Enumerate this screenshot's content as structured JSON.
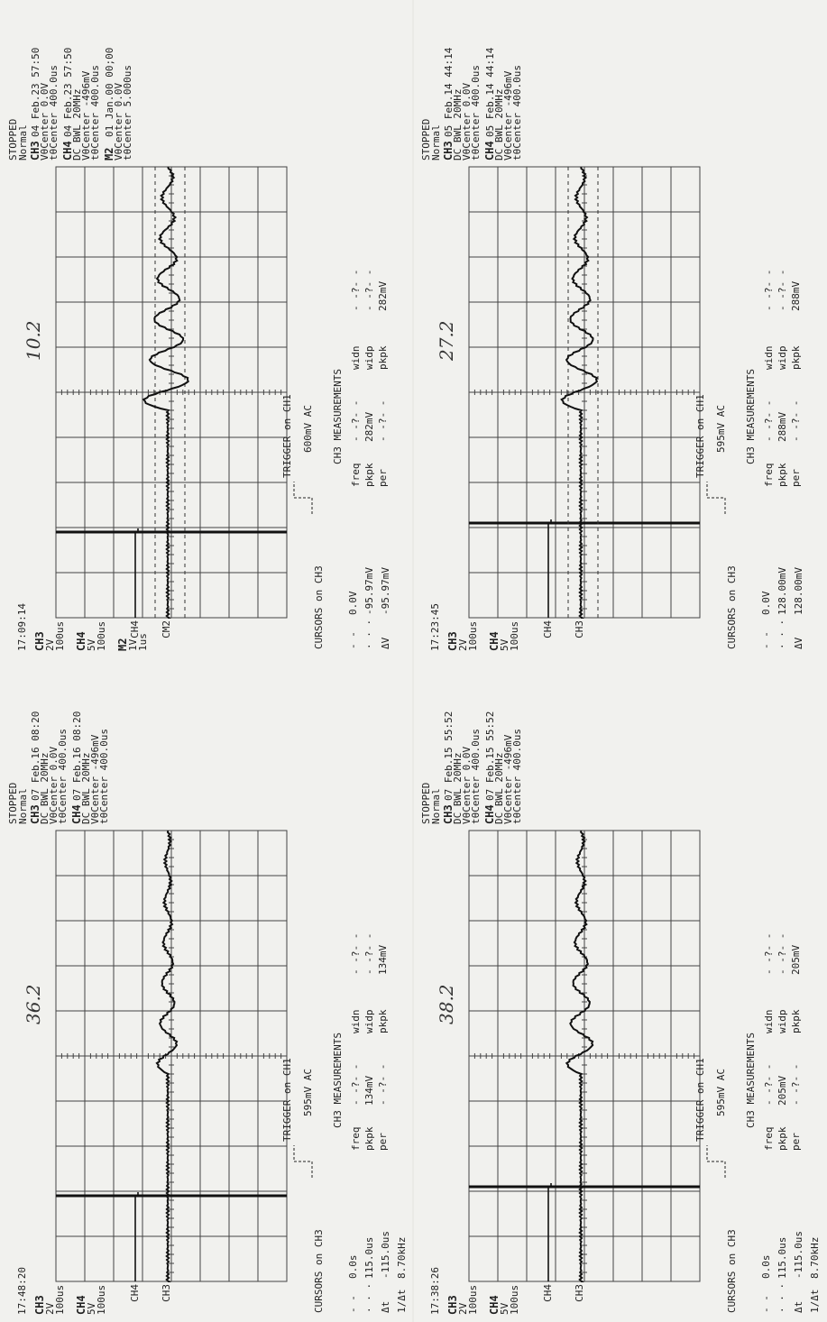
{
  "panels": [
    {
      "time": "17:09:14",
      "note": "10.2",
      "scales": [
        {
          "id": "CH3",
          "volts": "2V",
          "time": "100us"
        },
        {
          "id": "CH4",
          "volts": "5V",
          "time": "100us"
        },
        {
          "id": "M2",
          "volts": "1V",
          "time": "1us"
        }
      ],
      "markers": [
        "CH4",
        "CM2"
      ],
      "header": {
        "status": "STOPPED",
        "mode": "Normal",
        "blocks": [
          {
            "id": "CH3",
            "date": "04 Feb.23 57:50",
            "lines": [
              "VθCenter 0.0V",
              "tθCenter 400.0us"
            ]
          },
          {
            "id": "CH4",
            "date": "04 Feb.23 57:50",
            "lines": [
              "DC BWL 20MHz",
              "VθCenter -496mV",
              "tθCenter 400.0us"
            ]
          },
          {
            "id": "M2",
            "date": "01 Jan.00 00;00",
            "lines": [
              "VθCenter 0.0V",
              "tθCenter 5.000us"
            ]
          }
        ]
      },
      "trigger": {
        "label": "TRIGGER on CH1",
        "level": "600mV AC"
      },
      "cursors": {
        "title": "CURSORS on CH3",
        "rows": [
          [
            "- -",
            "0.0V"
          ],
          [
            "· · ·",
            "-95.97mV"
          ],
          [
            "ΔV",
            "-95.97mV"
          ]
        ]
      },
      "measurements": {
        "title": "CH3 MEASUREMENTS",
        "rows": [
          [
            "freq",
            "- -?- -",
            "widn",
            "- -?- -"
          ],
          [
            "pkpk",
            "282mV",
            "widp",
            "- -?- -"
          ],
          [
            "per",
            "- -?- -",
            "pkpk",
            "282mV"
          ]
        ]
      }
    },
    {
      "time": "17:23:45",
      "note": "27.2",
      "scales": [
        {
          "id": "CH3",
          "volts": "2V",
          "time": "100us"
        },
        {
          "id": "CH4",
          "volts": "5V",
          "time": "100us"
        }
      ],
      "markers": [
        "CH4",
        "CH3"
      ],
      "header": {
        "status": "STOPPED",
        "mode": "Normal",
        "blocks": [
          {
            "id": "CH3",
            "date": "05 Feb.14 44:14",
            "lines": [
              "DC BWL 20MHz",
              "VθCenter 0.0V",
              "tθCenter 400.0us"
            ]
          },
          {
            "id": "CH4",
            "date": "05 Feb.14 44:14",
            "lines": [
              "DC BWL 20MHz",
              "VθCenter -496mV",
              "tθCenter 400.0us"
            ]
          }
        ]
      },
      "trigger": {
        "label": "TRIGGER on CH1",
        "level": "595mV AC"
      },
      "cursors": {
        "title": "CURSORS on CH3",
        "rows": [
          [
            "- -",
            "0.0V"
          ],
          [
            "· · ·",
            "128.00mV"
          ],
          [
            "ΔV",
            "128.00mV"
          ]
        ]
      },
      "measurements": {
        "title": "CH3 MEASUREMENTS",
        "rows": [
          [
            "freq",
            "- -?- -",
            "widn",
            "- -?- -"
          ],
          [
            "pkpk",
            "288mV",
            "widp",
            "- -?- -"
          ],
          [
            "per",
            "- -?- -",
            "pkpk",
            "288mV"
          ]
        ]
      }
    },
    {
      "time": "17:48:20",
      "note": "36.2",
      "scales": [
        {
          "id": "CH3",
          "volts": "2V",
          "time": "100us"
        },
        {
          "id": "CH4",
          "volts": "5V",
          "time": "100us"
        }
      ],
      "markers": [
        "CH4",
        "CH3"
      ],
      "header": {
        "status": "STOPPED",
        "mode": "Normal",
        "blocks": [
          {
            "id": "CH3",
            "date": "07 Feb.16 08:20",
            "lines": [
              "DC BWL 20MHz",
              "VθCenter 0.0V",
              "tθCenter 400.0us"
            ]
          },
          {
            "id": "CH4",
            "date": "07 Feb.16 08:20",
            "lines": [
              "DC BWL 20MHz",
              "VθCenter -496mV",
              "tθCenter 400.0us"
            ]
          }
        ]
      },
      "trigger": {
        "label": "TRIGGER on CH1",
        "level": "595mV AC"
      },
      "cursors": {
        "title": "CURSORS on CH3",
        "rows": [
          [
            "- -",
            "0.0s"
          ],
          [
            "· · ·",
            "115.0us"
          ],
          [
            "Δt",
            "-115.0us"
          ],
          [
            "1/Δt",
            "8.70kHz"
          ]
        ]
      },
      "measurements": {
        "title": "CH3 MEASUREMENTS",
        "rows": [
          [
            "freq",
            "- -?- -",
            "widn",
            "- -?- -"
          ],
          [
            "pkpk",
            "134mV",
            "widp",
            "- -?- -"
          ],
          [
            "per",
            "- -?- -",
            "pkpk",
            "134mV"
          ]
        ]
      }
    },
    {
      "time": "17:38:26",
      "note": "38.2",
      "scales": [
        {
          "id": "CH3",
          "volts": "2V",
          "time": "100us"
        },
        {
          "id": "CH4",
          "volts": "5V",
          "time": "100us"
        }
      ],
      "markers": [
        "CH4",
        "CH3"
      ],
      "header": {
        "status": "STOPPED",
        "mode": "Normal",
        "blocks": [
          {
            "id": "CH3",
            "date": "07 Feb.15 55:52",
            "lines": [
              "DC BWL 20MHz",
              "VθCenter 0.0V",
              "tθCenter 400.0us"
            ]
          },
          {
            "id": "CH4",
            "date": "07 Feb.15 55:52",
            "lines": [
              "DC BWL 20MHz",
              "VθCenter -496mV",
              "tθCenter 400.0us"
            ]
          }
        ]
      },
      "trigger": {
        "label": "TRIGGER on CH1",
        "level": "595mV AC"
      },
      "cursors": {
        "title": "CURSORS on CH3",
        "rows": [
          [
            "- -",
            "0.0s"
          ],
          [
            "· · ·",
            "115.0us"
          ],
          [
            "Δt",
            "-115.0us"
          ],
          [
            "1/Δt",
            "8.70kHz"
          ]
        ]
      },
      "measurements": {
        "title": "CH3 MEASUREMENTS",
        "rows": [
          [
            "freq",
            "- -?- -",
            "widn",
            "- -?- -"
          ],
          [
            "pkpk",
            "205mV",
            "widp",
            "- -?- -"
          ],
          [
            "per",
            "- -?- -",
            "pkpk",
            "205mV"
          ]
        ]
      }
    }
  ]
}
